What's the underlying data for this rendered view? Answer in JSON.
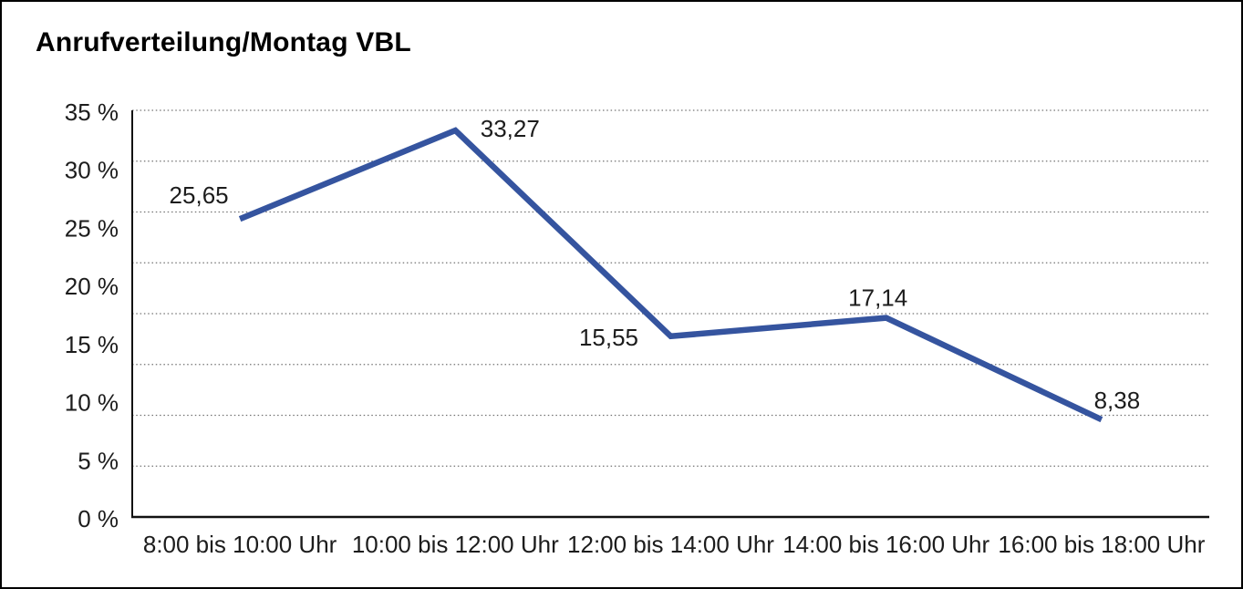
{
  "title": "Anrufverteilung/Montag VBL",
  "chart_data": {
    "type": "line",
    "title": "Anrufverteilung/Montag VBL",
    "categories": [
      "8:00 bis 10:00 Uhr",
      "10:00 bis 12:00 Uhr",
      "12:00 bis 14:00 Uhr",
      "14:00 bis 16:00 Uhr",
      "16:00 bis 18:00 Uhr"
    ],
    "values": [
      25.65,
      33.27,
      15.55,
      17.14,
      8.38
    ],
    "value_labels": [
      "25,65",
      "33,27",
      "15,55",
      "17,14",
      "8,38"
    ],
    "y_tick_labels": [
      "35 %",
      "30 %",
      "25 %",
      "20 %",
      "15 %",
      "10 %",
      "5 %",
      "0 %"
    ],
    "ylim": [
      0,
      35
    ],
    "xlabel": "",
    "ylabel": "",
    "legend": "none",
    "grid": "horizontal-dotted",
    "line_color": "#35549f",
    "axis_color": "#111111",
    "gridline_color": "#737373",
    "text_color": "#1c1c1c"
  }
}
